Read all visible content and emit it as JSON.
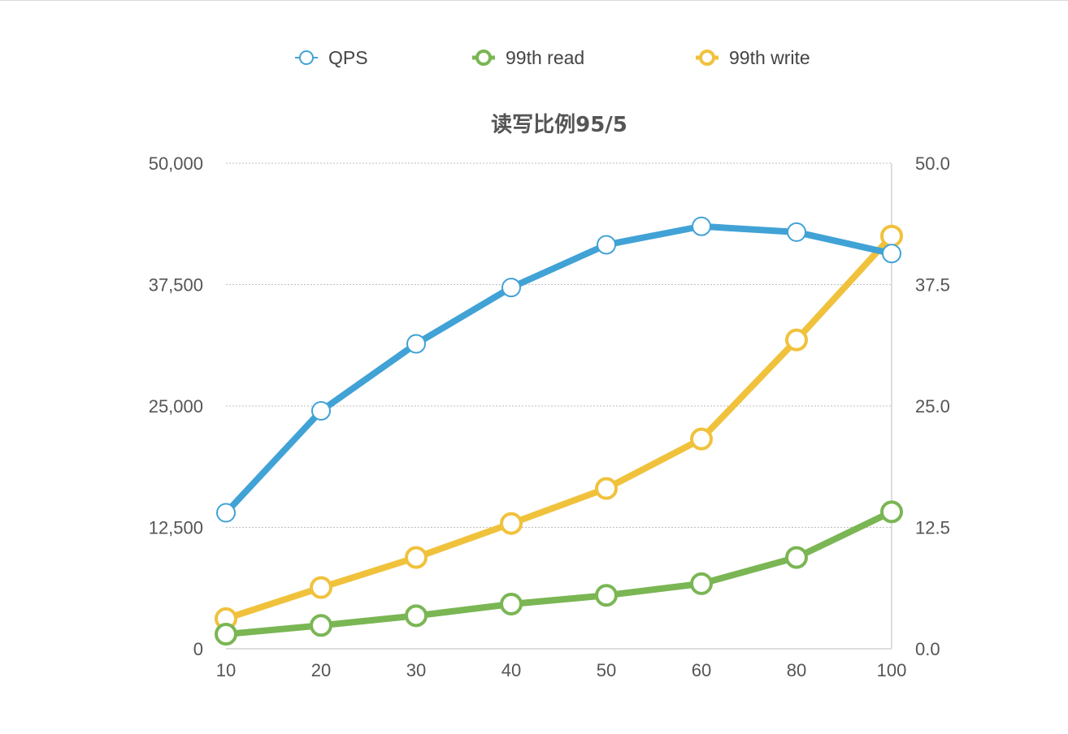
{
  "chart_data": {
    "type": "line",
    "title": "读写比例95/5",
    "xlabel": "",
    "categories": [
      "10",
      "20",
      "30",
      "40",
      "50",
      "60",
      "80",
      "100"
    ],
    "y_left": {
      "range": [
        0,
        50000
      ],
      "ticks": [
        0,
        12500,
        25000,
        37500,
        50000
      ],
      "tick_labels": [
        "0",
        "12,500",
        "25,000",
        "37,500",
        "50,000"
      ]
    },
    "y_right": {
      "range": [
        0,
        50
      ],
      "ticks": [
        0,
        12.5,
        25,
        37.5,
        50
      ],
      "tick_labels": [
        "0.0",
        "12.5",
        "25.0",
        "37.5",
        "50.0"
      ]
    },
    "grid": true,
    "legend_position": "top-center",
    "series": [
      {
        "name": "QPS",
        "axis": "left",
        "color": "#41a2d6",
        "values": [
          14000,
          24500,
          31400,
          37200,
          41600,
          43500,
          42900,
          40700
        ]
      },
      {
        "name": "99th read",
        "axis": "right",
        "color": "#7ab654",
        "values": [
          1.5,
          2.4,
          3.4,
          4.6,
          5.5,
          6.7,
          9.4,
          14.1
        ]
      },
      {
        "name": "99th write",
        "axis": "right",
        "color": "#f0c23c",
        "values": [
          3.1,
          6.3,
          9.4,
          12.9,
          16.5,
          21.6,
          31.8,
          42.5
        ]
      }
    ]
  }
}
